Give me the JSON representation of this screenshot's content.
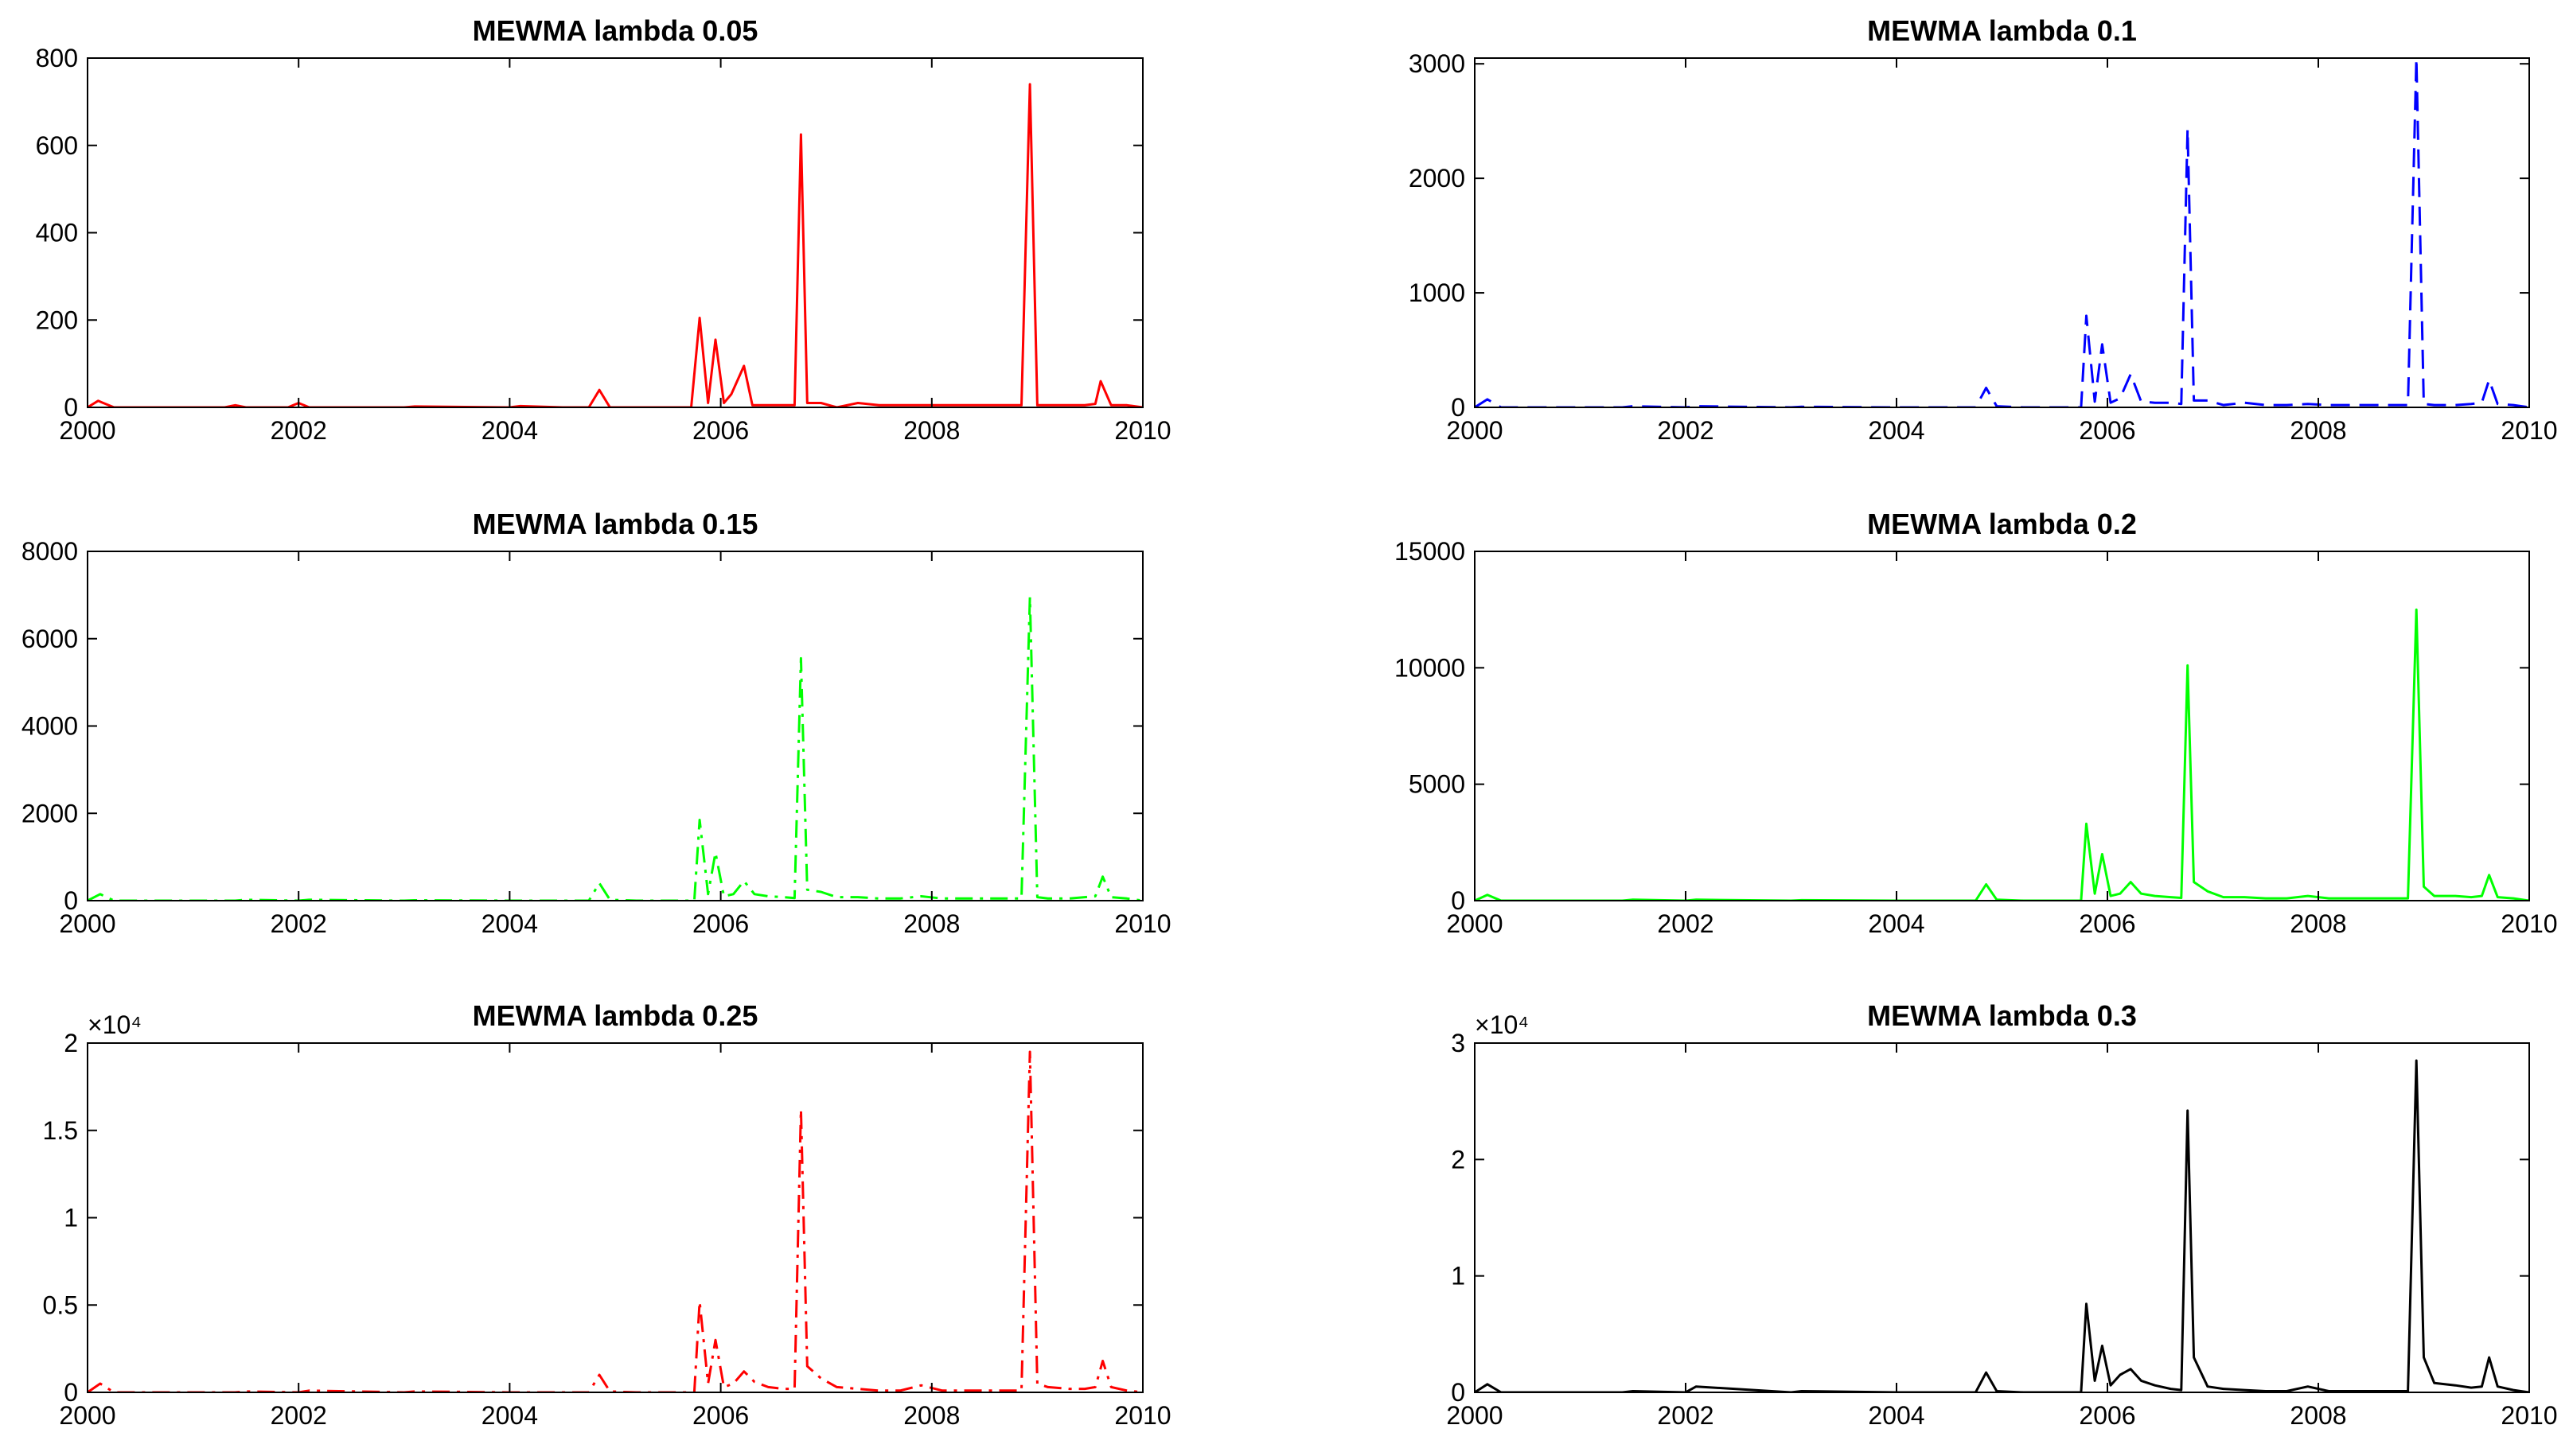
{
  "chart_data": [
    {
      "type": "line",
      "title": "MEWMA lambda 0.05",
      "xlim": [
        2000,
        2010
      ],
      "ylim": [
        0,
        800
      ],
      "xticks": [
        2000,
        2002,
        2004,
        2006,
        2008,
        2010
      ],
      "yticks": [
        0,
        200,
        400,
        600,
        800
      ],
      "ytick_labels": [
        "0",
        "200",
        "400",
        "600",
        "800"
      ],
      "exponent_label": "",
      "series": [
        {
          "color": "#ff0000",
          "linestyle": "solid",
          "x": [
            2000.0,
            2000.1,
            2000.25,
            2000.35,
            2001.3,
            2001.4,
            2001.5,
            2001.9,
            2002.0,
            2002.1,
            2003.0,
            2003.1,
            2004.0,
            2004.1,
            2004.5,
            2004.75,
            2004.85,
            2004.95,
            2005.2,
            2005.4,
            2005.6,
            2005.72,
            2005.8,
            2005.88,
            2005.95,
            2006.03,
            2006.1,
            2006.22,
            2006.3,
            2006.45,
            2006.6,
            2006.7,
            2006.76,
            2006.82,
            2006.95,
            2007.1,
            2007.3,
            2007.5,
            2007.7,
            2007.9,
            2008.1,
            2008.3,
            2008.45,
            2008.6,
            2008.75,
            2008.85,
            2008.93,
            2009.0,
            2009.1,
            2009.3,
            2009.45,
            2009.55,
            2009.6,
            2009.7,
            2009.85,
            2010.0
          ],
          "y": [
            0,
            15,
            0,
            0,
            0,
            5,
            0,
            0,
            10,
            0,
            0,
            2,
            0,
            3,
            0,
            0,
            40,
            0,
            0,
            0,
            0,
            0,
            205,
            10,
            155,
            10,
            30,
            95,
            5,
            5,
            5,
            5,
            625,
            10,
            10,
            0,
            10,
            5,
            5,
            5,
            5,
            5,
            5,
            5,
            5,
            5,
            740,
            5,
            5,
            5,
            5,
            8,
            60,
            5,
            5,
            0
          ]
        }
      ]
    },
    {
      "type": "line",
      "title": "MEWMA lambda 0.1",
      "xlim": [
        2000,
        2010
      ],
      "ylim": [
        0,
        3050
      ],
      "xticks": [
        2000,
        2002,
        2004,
        2006,
        2008,
        2010
      ],
      "yticks": [
        0,
        1000,
        2000,
        3000
      ],
      "ytick_labels": [
        "0",
        "1000",
        "2000",
        "3000"
      ],
      "exponent_label": "",
      "series": [
        {
          "color": "#0000ff",
          "linestyle": "dashed",
          "x": [
            2000.0,
            2000.12,
            2000.25,
            2001.4,
            2001.5,
            2002.0,
            2002.1,
            2003.0,
            2003.1,
            2004.0,
            2004.6,
            2004.75,
            2004.85,
            2004.95,
            2005.2,
            2005.5,
            2005.65,
            2005.75,
            2005.8,
            2005.88,
            2005.95,
            2006.03,
            2006.12,
            2006.22,
            2006.32,
            2006.45,
            2006.6,
            2006.7,
            2006.76,
            2006.82,
            2006.95,
            2007.1,
            2007.3,
            2007.5,
            2007.7,
            2007.9,
            2008.1,
            2008.3,
            2008.45,
            2008.6,
            2008.75,
            2008.85,
            2008.93,
            2009.0,
            2009.1,
            2009.3,
            2009.45,
            2009.55,
            2009.62,
            2009.7,
            2009.85,
            2010.0
          ],
          "y": [
            0,
            70,
            0,
            0,
            10,
            0,
            10,
            0,
            5,
            0,
            0,
            0,
            170,
            10,
            0,
            0,
            0,
            0,
            800,
            50,
            550,
            40,
            80,
            290,
            50,
            40,
            40,
            30,
            2430,
            60,
            60,
            20,
            40,
            20,
            20,
            30,
            20,
            20,
            20,
            20,
            20,
            20,
            3050,
            30,
            20,
            20,
            30,
            40,
            240,
            30,
            20,
            0
          ]
        }
      ]
    },
    {
      "type": "line",
      "title": "MEWMA lambda 0.15",
      "xlim": [
        2000,
        2010
      ],
      "ylim": [
        0,
        8000
      ],
      "xticks": [
        2000,
        2002,
        2004,
        2006,
        2008,
        2010
      ],
      "yticks": [
        0,
        2000,
        4000,
        6000,
        8000
      ],
      "ytick_labels": [
        "0",
        "2000",
        "4000",
        "6000",
        "8000"
      ],
      "exponent_label": "",
      "series": [
        {
          "color": "#00ff00",
          "linestyle": "dashdot",
          "x": [
            2000.0,
            2000.12,
            2000.25,
            2001.4,
            2001.5,
            2002.0,
            2002.1,
            2003.0,
            2003.1,
            2004.0,
            2004.6,
            2004.75,
            2004.85,
            2004.95,
            2005.2,
            2005.5,
            2005.65,
            2005.75,
            2005.8,
            2005.88,
            2005.95,
            2006.03,
            2006.12,
            2006.22,
            2006.32,
            2006.45,
            2006.6,
            2006.7,
            2006.76,
            2006.82,
            2006.95,
            2007.1,
            2007.3,
            2007.5,
            2007.7,
            2007.9,
            2008.1,
            2008.3,
            2008.45,
            2008.6,
            2008.75,
            2008.85,
            2008.93,
            2009.0,
            2009.1,
            2009.3,
            2009.45,
            2009.55,
            2009.62,
            2009.7,
            2009.85,
            2010.0
          ],
          "y": [
            0,
            150,
            0,
            0,
            20,
            0,
            20,
            0,
            10,
            0,
            0,
            0,
            400,
            20,
            0,
            0,
            0,
            0,
            1850,
            150,
            1100,
            100,
            150,
            450,
            150,
            100,
            80,
            60,
            5550,
            250,
            200,
            80,
            80,
            50,
            50,
            100,
            50,
            50,
            50,
            50,
            50,
            50,
            6950,
            80,
            50,
            50,
            80,
            100,
            550,
            80,
            50,
            0
          ]
        }
      ]
    },
    {
      "type": "line",
      "title": "MEWMA lambda 0.2",
      "xlim": [
        2000,
        2010
      ],
      "ylim": [
        0,
        15000
      ],
      "xticks": [
        2000,
        2002,
        2004,
        2006,
        2008,
        2010
      ],
      "yticks": [
        0,
        5000,
        10000,
        15000
      ],
      "ytick_labels": [
        "0",
        "5000",
        "10000",
        "15000"
      ],
      "exponent_label": "",
      "series": [
        {
          "color": "#00ff00",
          "linestyle": "solid",
          "x": [
            2000.0,
            2000.12,
            2000.25,
            2001.4,
            2001.5,
            2002.0,
            2002.1,
            2003.0,
            2003.1,
            2004.0,
            2004.6,
            2004.75,
            2004.85,
            2004.95,
            2005.2,
            2005.5,
            2005.65,
            2005.75,
            2005.8,
            2005.88,
            2005.95,
            2006.03,
            2006.12,
            2006.22,
            2006.32,
            2006.45,
            2006.6,
            2006.7,
            2006.76,
            2006.82,
            2006.95,
            2007.1,
            2007.3,
            2007.5,
            2007.7,
            2007.9,
            2008.1,
            2008.3,
            2008.45,
            2008.6,
            2008.75,
            2008.85,
            2008.93,
            2009.0,
            2009.1,
            2009.3,
            2009.45,
            2009.55,
            2009.62,
            2009.7,
            2009.85,
            2010.0
          ],
          "y": [
            0,
            250,
            0,
            0,
            40,
            0,
            40,
            0,
            20,
            0,
            0,
            0,
            700,
            40,
            0,
            0,
            0,
            0,
            3300,
            300,
            2000,
            200,
            300,
            800,
            300,
            200,
            150,
            120,
            10100,
            800,
            400,
            150,
            150,
            100,
            100,
            200,
            100,
            100,
            100,
            100,
            100,
            100,
            12500,
            600,
            200,
            200,
            150,
            200,
            1100,
            150,
            100,
            0
          ]
        }
      ]
    },
    {
      "type": "line",
      "title": "MEWMA lambda 0.25",
      "xlim": [
        2000,
        2010
      ],
      "ylim": [
        0,
        2
      ],
      "xticks": [
        2000,
        2002,
        2004,
        2006,
        2008,
        2010
      ],
      "yticks": [
        0,
        0.5,
        1,
        1.5,
        2
      ],
      "ytick_labels": [
        "0",
        "0.5",
        "1",
        "1.5",
        "2"
      ],
      "exponent_label": "×10⁴",
      "series": [
        {
          "color": "#ff0000",
          "linestyle": "dashdot",
          "x": [
            2000.0,
            2000.12,
            2000.25,
            2001.4,
            2001.5,
            2002.0,
            2002.1,
            2003.0,
            2003.1,
            2004.0,
            2004.6,
            2004.75,
            2004.85,
            2004.95,
            2005.2,
            2005.5,
            2005.65,
            2005.75,
            2005.8,
            2005.88,
            2005.95,
            2006.03,
            2006.12,
            2006.22,
            2006.32,
            2006.45,
            2006.6,
            2006.7,
            2006.76,
            2006.82,
            2006.95,
            2007.1,
            2007.3,
            2007.5,
            2007.7,
            2007.9,
            2008.1,
            2008.3,
            2008.45,
            2008.6,
            2008.75,
            2008.85,
            2008.93,
            2009.0,
            2009.1,
            2009.3,
            2009.45,
            2009.55,
            2009.62,
            2009.7,
            2009.85,
            2010.0
          ],
          "y": [
            0,
            0.05,
            0,
            0,
            0.005,
            0,
            0.01,
            0,
            0.005,
            0,
            0,
            0,
            0.1,
            0.005,
            0,
            0,
            0,
            0,
            0.52,
            0.05,
            0.3,
            0.03,
            0.05,
            0.12,
            0.06,
            0.03,
            0.02,
            0.02,
            1.62,
            0.15,
            0.08,
            0.03,
            0.02,
            0.01,
            0.01,
            0.04,
            0.01,
            0.01,
            0.01,
            0.01,
            0.01,
            0.01,
            1.95,
            0.05,
            0.03,
            0.02,
            0.02,
            0.03,
            0.18,
            0.03,
            0.01,
            0
          ]
        }
      ]
    },
    {
      "type": "line",
      "title": "MEWMA lambda 0.3",
      "xlim": [
        2000,
        2010
      ],
      "ylim": [
        0,
        3
      ],
      "xticks": [
        2000,
        2002,
        2004,
        2006,
        2008,
        2010
      ],
      "yticks": [
        0,
        1,
        2,
        3
      ],
      "ytick_labels": [
        "0",
        "1",
        "2",
        "3"
      ],
      "exponent_label": "×10⁴",
      "series": [
        {
          "color": "#000000",
          "linestyle": "solid",
          "x": [
            2000.0,
            2000.12,
            2000.25,
            2001.4,
            2001.5,
            2002.0,
            2002.1,
            2003.0,
            2003.1,
            2004.0,
            2004.6,
            2004.75,
            2004.85,
            2004.95,
            2005.2,
            2005.5,
            2005.65,
            2005.75,
            2005.8,
            2005.88,
            2005.95,
            2006.03,
            2006.12,
            2006.22,
            2006.32,
            2006.45,
            2006.6,
            2006.7,
            2006.76,
            2006.82,
            2006.95,
            2007.1,
            2007.3,
            2007.5,
            2007.7,
            2007.9,
            2008.1,
            2008.3,
            2008.45,
            2008.6,
            2008.75,
            2008.85,
            2008.93,
            2009.0,
            2009.1,
            2009.3,
            2009.45,
            2009.55,
            2009.62,
            2009.7,
            2009.85,
            2010.0
          ],
          "y": [
            0,
            0.07,
            0,
            0,
            0.01,
            0,
            0.05,
            0,
            0.01,
            0,
            0,
            0,
            0.17,
            0.01,
            0,
            0,
            0,
            0,
            0.76,
            0.1,
            0.4,
            0.06,
            0.15,
            0.2,
            0.1,
            0.06,
            0.03,
            0.02,
            2.42,
            0.3,
            0.05,
            0.03,
            0.02,
            0.01,
            0.01,
            0.05,
            0.01,
            0.01,
            0.01,
            0.01,
            0.01,
            0.01,
            2.85,
            0.3,
            0.08,
            0.06,
            0.04,
            0.05,
            0.3,
            0.05,
            0.02,
            0
          ]
        }
      ]
    }
  ]
}
